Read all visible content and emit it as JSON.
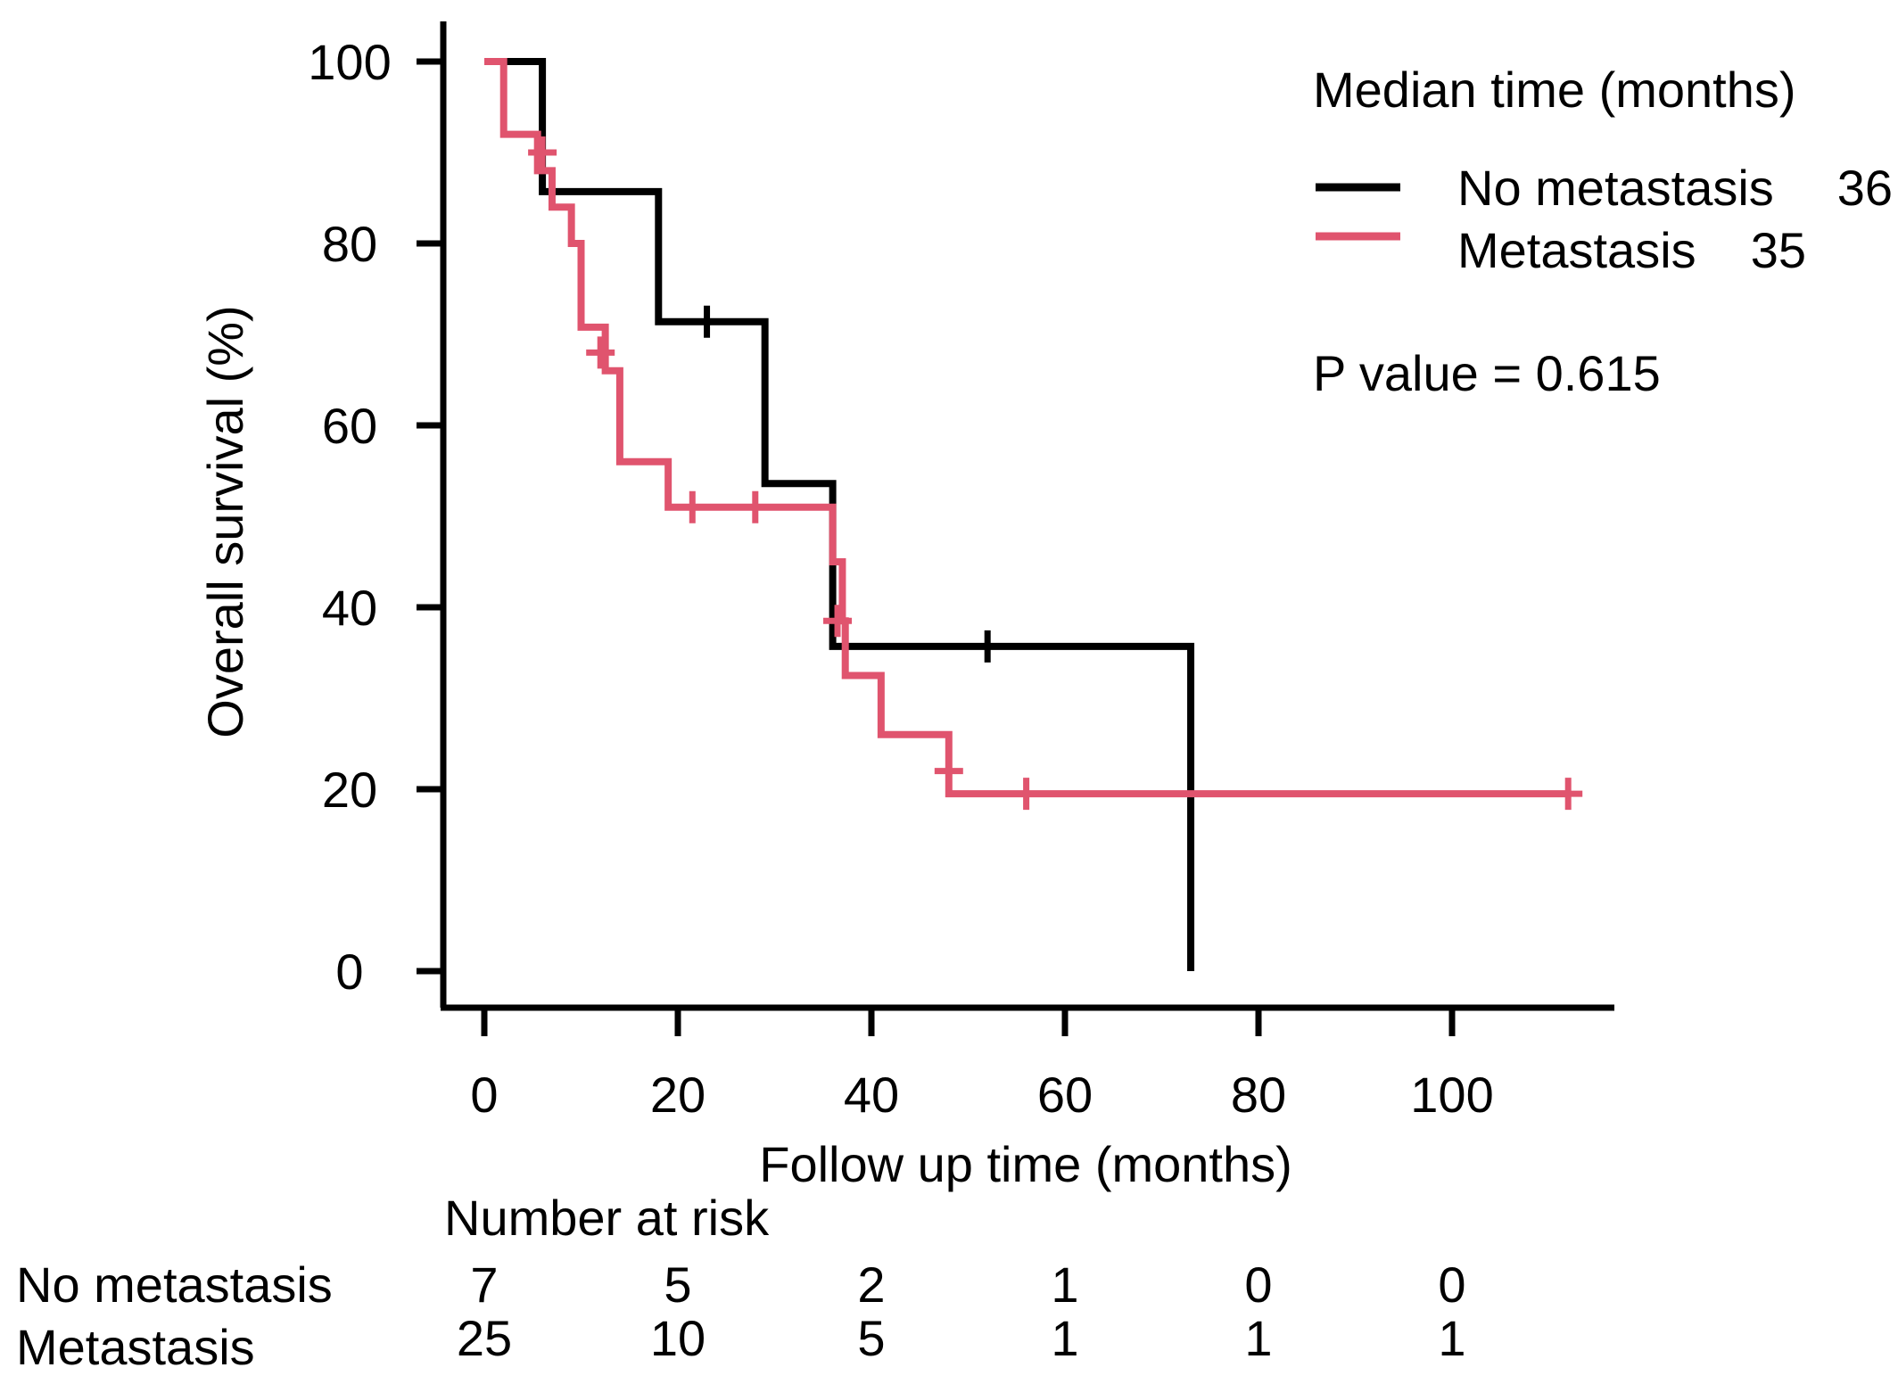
{
  "chart_data": {
    "type": "line",
    "subtype": "kaplan-meier",
    "title": "",
    "xlabel": "Follow up time (months)",
    "ylabel": "Overall survival (%)",
    "xlim": [
      0,
      116
    ],
    "ylim": [
      0,
      100
    ],
    "x_ticks": [
      0,
      20,
      40,
      60,
      80,
      100
    ],
    "y_ticks": [
      0,
      20,
      40,
      60,
      80,
      100
    ],
    "grid": false,
    "legend": {
      "position": "top-right",
      "title": "Median time (months)",
      "entries": [
        {
          "name": "No metastasis",
          "median": "36"
        },
        {
          "name": "Metastasis",
          "median": "35"
        }
      ]
    },
    "annotation": "P value = 0.615",
    "series": [
      {
        "name": "No metastasis",
        "color": "#000000",
        "steps": [
          [
            0,
            100
          ],
          [
            6,
            85.7
          ],
          [
            18,
            71.4
          ],
          [
            29,
            53.6
          ],
          [
            36,
            35.7
          ],
          [
            73,
            0
          ]
        ],
        "censored": [
          [
            23,
            71.4
          ],
          [
            52,
            35.7
          ]
        ]
      },
      {
        "name": "Metastasis",
        "color": "#e0546e",
        "steps": [
          [
            0,
            100
          ],
          [
            2,
            92
          ],
          [
            5.5,
            88
          ],
          [
            7,
            84
          ],
          [
            9,
            80
          ],
          [
            10,
            70.8
          ],
          [
            12.5,
            66
          ],
          [
            14,
            56
          ],
          [
            19,
            51
          ],
          [
            36,
            45
          ],
          [
            37,
            38.5
          ],
          [
            37.3,
            32.5
          ],
          [
            41,
            26
          ],
          [
            48,
            19.5
          ]
        ],
        "end_x": 112,
        "censored": [
          [
            6,
            90
          ],
          [
            12,
            68
          ],
          [
            21.5,
            51
          ],
          [
            28,
            51
          ],
          [
            36.5,
            38.5
          ],
          [
            48,
            22
          ],
          [
            56,
            19.5
          ],
          [
            112,
            19.5
          ]
        ]
      }
    ],
    "risk_table": {
      "title": "Number at risk",
      "times": [
        0,
        20,
        40,
        60,
        80,
        100
      ],
      "rows": [
        {
          "label": "No metastasis",
          "values": [
            "7",
            "5",
            "2",
            "1",
            "0",
            "0"
          ]
        },
        {
          "label": "Metastasis",
          "values": [
            "25",
            "10",
            "5",
            "1",
            "1",
            "1"
          ]
        }
      ]
    }
  },
  "tick_labels": {
    "x": [
      "0",
      "20",
      "40",
      "60",
      "80",
      "100"
    ],
    "y": [
      "0",
      "20",
      "40",
      "60",
      "80",
      "100"
    ]
  }
}
